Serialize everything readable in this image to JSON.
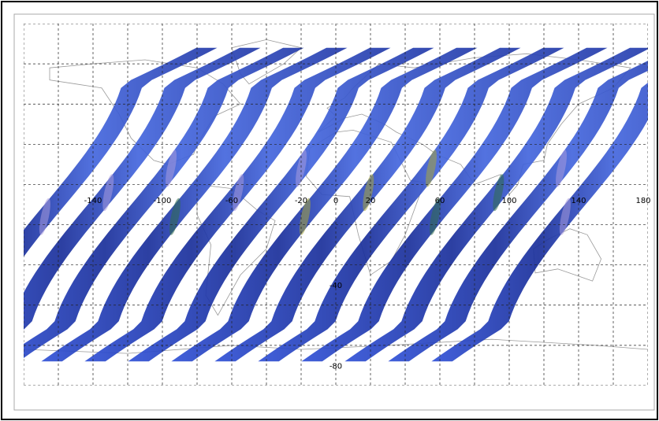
{
  "map": {
    "projection": "equirectangular",
    "lon_range": [
      -180,
      180
    ],
    "lat_range": [
      -90,
      90
    ],
    "grid": true,
    "grid_step_deg": 20,
    "lon_labels": [
      {
        "lon": -140,
        "text": "-140"
      },
      {
        "lon": -100,
        "text": "-100"
      },
      {
        "lon": -60,
        "text": "-60"
      },
      {
        "lon": -20,
        "text": "-20"
      },
      {
        "lon": 0,
        "text": "0"
      },
      {
        "lon": 20,
        "text": "20"
      },
      {
        "lon": 60,
        "text": "60"
      },
      {
        "lon": 100,
        "text": "100"
      },
      {
        "lon": 140,
        "text": "140"
      },
      {
        "lon": 180,
        "text": "180"
      }
    ],
    "lat_labels": [
      {
        "lat": -40,
        "text": "-40"
      },
      {
        "lat": -80,
        "text": "-80"
      }
    ],
    "colors": {
      "swath_blue": "#2f4fd4",
      "swath_dark": "#0f1e7a",
      "swath_lavender": "#a79bdc",
      "swath_green": "#2f6e4a",
      "swath_yellow": "#a8a63a",
      "coastline": "#9a9a9a",
      "grid": "#222222",
      "border": "#000000"
    },
    "swaths": [
      {
        "asc_lon": -162
      },
      {
        "asc_lon": -137
      },
      {
        "asc_lon": -112
      },
      {
        "asc_lon": -87
      },
      {
        "asc_lon": -62
      },
      {
        "asc_lon": -37
      },
      {
        "asc_lon": -12
      },
      {
        "asc_lon": 13
      },
      {
        "asc_lon": 38
      },
      {
        "asc_lon": 63
      },
      {
        "asc_lon": 88
      },
      {
        "asc_lon": 113
      },
      {
        "asc_lon": 138
      }
    ]
  }
}
